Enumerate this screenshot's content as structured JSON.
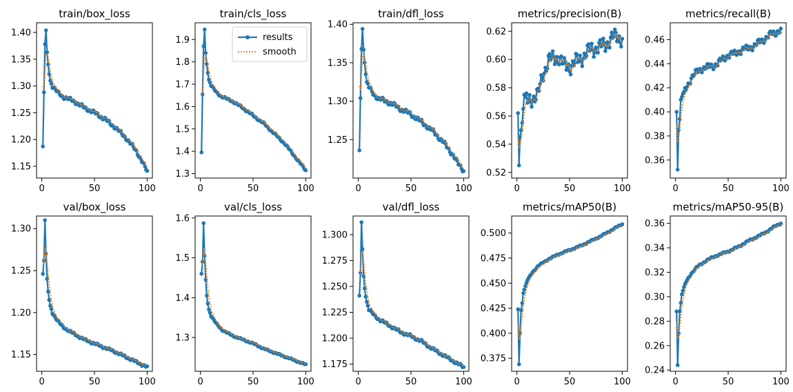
{
  "figure": {
    "columns": 5,
    "rows": 2
  },
  "colors": {
    "results": "#1f77b4",
    "smooth": "#ff7f0e",
    "axes": "#000000",
    "background": "#ffffff"
  },
  "legend": {
    "entries": [
      "results",
      "smooth"
    ],
    "location": "upper-right",
    "panel": 1
  },
  "chart_data": [
    {
      "type": "line",
      "title": "train/box_loss",
      "xlim": [
        -5,
        105
      ],
      "ylim": [
        1.128,
        1.418
      ],
      "xticks": [
        0,
        50,
        100
      ],
      "yticks": [
        1.15,
        1.2,
        1.25,
        1.3,
        1.35,
        1.4
      ],
      "ytick_labels": [
        "1.15",
        "1.20",
        "1.25",
        "1.30",
        "1.35",
        "1.40"
      ],
      "kp": [
        [
          1,
          1.187
        ],
        [
          2,
          1.288
        ],
        [
          3,
          1.378
        ],
        [
          4,
          1.404
        ],
        [
          5,
          1.363
        ],
        [
          6,
          1.34
        ],
        [
          7,
          1.322
        ],
        [
          8,
          1.31
        ],
        [
          10,
          1.3
        ],
        [
          15,
          1.288
        ],
        [
          20,
          1.28
        ],
        [
          30,
          1.272
        ],
        [
          40,
          1.26
        ],
        [
          50,
          1.25
        ],
        [
          60,
          1.238
        ],
        [
          70,
          1.222
        ],
        [
          80,
          1.203
        ],
        [
          90,
          1.178
        ],
        [
          95,
          1.16
        ],
        [
          100,
          1.14
        ]
      ],
      "smooth_start": 1.3,
      "noise": 0.003
    },
    {
      "type": "line",
      "title": "train/cls_loss",
      "xlim": [
        -5,
        105
      ],
      "ylim": [
        1.28,
        1.975
      ],
      "xticks": [
        0,
        50,
        100
      ],
      "yticks": [
        1.3,
        1.4,
        1.5,
        1.6,
        1.7,
        1.8,
        1.9
      ],
      "ytick_labels": [
        "1.3",
        "1.4",
        "1.5",
        "1.6",
        "1.7",
        "1.8",
        "1.9"
      ],
      "kp": [
        [
          1,
          1.395
        ],
        [
          2,
          1.655
        ],
        [
          3,
          1.87
        ],
        [
          4,
          1.945
        ],
        [
          5,
          1.84
        ],
        [
          6,
          1.79
        ],
        [
          7,
          1.75
        ],
        [
          8,
          1.72
        ],
        [
          10,
          1.695
        ],
        [
          15,
          1.665
        ],
        [
          20,
          1.645
        ],
        [
          30,
          1.625
        ],
        [
          40,
          1.595
        ],
        [
          50,
          1.56
        ],
        [
          60,
          1.525
        ],
        [
          70,
          1.48
        ],
        [
          80,
          1.435
        ],
        [
          90,
          1.375
        ],
        [
          95,
          1.345
        ],
        [
          100,
          1.315
        ]
      ],
      "smooth_start": 1.66,
      "noise": 0.004
    },
    {
      "type": "line",
      "title": "train/dfl_loss",
      "xlim": [
        -5,
        105
      ],
      "ylim": [
        1.2,
        1.402
      ],
      "xticks": [
        0,
        50,
        100
      ],
      "yticks": [
        1.25,
        1.3,
        1.35,
        1.4
      ],
      "ytick_labels": [
        "1.25",
        "1.30",
        "1.35",
        "1.40"
      ],
      "kp": [
        [
          1,
          1.236
        ],
        [
          2,
          1.304
        ],
        [
          3,
          1.368
        ],
        [
          4,
          1.394
        ],
        [
          5,
          1.367
        ],
        [
          6,
          1.35
        ],
        [
          7,
          1.335
        ],
        [
          8,
          1.325
        ],
        [
          10,
          1.318
        ],
        [
          15,
          1.308
        ],
        [
          20,
          1.303
        ],
        [
          30,
          1.298
        ],
        [
          40,
          1.29
        ],
        [
          50,
          1.283
        ],
        [
          60,
          1.273
        ],
        [
          70,
          1.262
        ],
        [
          80,
          1.248
        ],
        [
          90,
          1.23
        ],
        [
          95,
          1.218
        ],
        [
          100,
          1.21
        ]
      ],
      "smooth_start": 1.32,
      "noise": 0.0025
    },
    {
      "type": "line",
      "title": "metrics/precision(B)",
      "xlim": [
        -5,
        105
      ],
      "ylim": [
        0.516,
        0.626
      ],
      "xticks": [
        0,
        50,
        100
      ],
      "yticks": [
        0.52,
        0.54,
        0.56,
        0.58,
        0.6,
        0.62
      ],
      "ytick_labels": [
        "0.52",
        "0.54",
        "0.56",
        "0.58",
        "0.60",
        "0.62"
      ],
      "kp": [
        [
          1,
          0.562
        ],
        [
          2,
          0.525
        ],
        [
          3,
          0.545
        ],
        [
          5,
          0.555
        ],
        [
          7,
          0.575
        ],
        [
          10,
          0.57
        ],
        [
          15,
          0.573
        ],
        [
          20,
          0.575
        ],
        [
          25,
          0.59
        ],
        [
          30,
          0.6
        ],
        [
          35,
          0.6
        ],
        [
          40,
          0.602
        ],
        [
          45,
          0.595
        ],
        [
          50,
          0.595
        ],
        [
          55,
          0.598
        ],
        [
          60,
          0.6
        ],
        [
          65,
          0.604
        ],
        [
          70,
          0.607
        ],
        [
          75,
          0.608
        ],
        [
          80,
          0.609
        ],
        [
          85,
          0.611
        ],
        [
          90,
          0.615
        ],
        [
          95,
          0.616
        ],
        [
          100,
          0.615
        ]
      ],
      "smooth_start": 0.545,
      "noise": 0.005
    },
    {
      "type": "line",
      "title": "metrics/recall(B)",
      "xlim": [
        -5,
        105
      ],
      "ylim": [
        0.345,
        0.474
      ],
      "xticks": [
        0,
        50,
        100
      ],
      "yticks": [
        0.36,
        0.38,
        0.4,
        0.42,
        0.44,
        0.46
      ],
      "ytick_labels": [
        "0.36",
        "0.38",
        "0.40",
        "0.42",
        "0.44",
        "0.46"
      ],
      "kp": [
        [
          1,
          0.4
        ],
        [
          2,
          0.352
        ],
        [
          3,
          0.385
        ],
        [
          4,
          0.394
        ],
        [
          5,
          0.41
        ],
        [
          7,
          0.415
        ],
        [
          10,
          0.42
        ],
        [
          15,
          0.428
        ],
        [
          20,
          0.433
        ],
        [
          25,
          0.436
        ],
        [
          30,
          0.437
        ],
        [
          35,
          0.438
        ],
        [
          40,
          0.44
        ],
        [
          45,
          0.444
        ],
        [
          50,
          0.447
        ],
        [
          55,
          0.448
        ],
        [
          60,
          0.45
        ],
        [
          65,
          0.452
        ],
        [
          70,
          0.453
        ],
        [
          75,
          0.455
        ],
        [
          80,
          0.458
        ],
        [
          85,
          0.461
        ],
        [
          90,
          0.464
        ],
        [
          95,
          0.466
        ],
        [
          100,
          0.468
        ]
      ],
      "smooth_start": 0.39,
      "noise": 0.0025
    },
    {
      "type": "line",
      "title": "val/box_loss",
      "xlim": [
        -5,
        105
      ],
      "ylim": [
        1.13,
        1.315
      ],
      "xticks": [
        0,
        50,
        100
      ],
      "yticks": [
        1.15,
        1.2,
        1.25,
        1.3
      ],
      "ytick_labels": [
        "1.15",
        "1.20",
        "1.25",
        "1.30"
      ],
      "kp": [
        [
          1,
          1.246
        ],
        [
          2,
          1.262
        ],
        [
          3,
          1.31
        ],
        [
          4,
          1.27
        ],
        [
          5,
          1.24
        ],
        [
          6,
          1.225
        ],
        [
          7,
          1.215
        ],
        [
          8,
          1.208
        ],
        [
          10,
          1.2
        ],
        [
          15,
          1.19
        ],
        [
          20,
          1.183
        ],
        [
          30,
          1.175
        ],
        [
          40,
          1.168
        ],
        [
          50,
          1.163
        ],
        [
          60,
          1.158
        ],
        [
          70,
          1.153
        ],
        [
          80,
          1.147
        ],
        [
          90,
          1.141
        ],
        [
          95,
          1.138
        ],
        [
          100,
          1.135
        ]
      ],
      "smooth_start": 1.255,
      "noise": 0.0012
    },
    {
      "type": "line",
      "title": "val/cls_loss",
      "xlim": [
        -5,
        105
      ],
      "ylim": [
        1.215,
        1.605
      ],
      "xticks": [
        0,
        50,
        100
      ],
      "yticks": [
        1.3,
        1.4,
        1.5,
        1.6
      ],
      "ytick_labels": [
        "1.3",
        "1.4",
        "1.5",
        "1.6"
      ],
      "kp": [
        [
          1,
          1.46
        ],
        [
          2,
          1.49
        ],
        [
          3,
          1.587
        ],
        [
          4,
          1.505
        ],
        [
          5,
          1.445
        ],
        [
          6,
          1.405
        ],
        [
          7,
          1.385
        ],
        [
          8,
          1.37
        ],
        [
          10,
          1.355
        ],
        [
          15,
          1.335
        ],
        [
          20,
          1.32
        ],
        [
          30,
          1.305
        ],
        [
          40,
          1.295
        ],
        [
          50,
          1.285
        ],
        [
          60,
          1.272
        ],
        [
          70,
          1.262
        ],
        [
          80,
          1.252
        ],
        [
          90,
          1.242
        ],
        [
          95,
          1.237
        ],
        [
          100,
          1.232
        ]
      ],
      "smooth_start": 1.48,
      "noise": 0.0015
    },
    {
      "type": "line",
      "title": "val/dfl_loss",
      "xlim": [
        -5,
        105
      ],
      "ylim": [
        1.168,
        1.318
      ],
      "xticks": [
        0,
        50,
        100
      ],
      "yticks": [
        1.175,
        1.2,
        1.225,
        1.25,
        1.275,
        1.3
      ],
      "ytick_labels": [
        "1.175",
        "1.200",
        "1.225",
        "1.250",
        "1.275",
        "1.300"
      ],
      "kp": [
        [
          1,
          1.241
        ],
        [
          2,
          1.263
        ],
        [
          3,
          1.312
        ],
        [
          4,
          1.286
        ],
        [
          5,
          1.26
        ],
        [
          6,
          1.248
        ],
        [
          7,
          1.24
        ],
        [
          8,
          1.235
        ],
        [
          10,
          1.228
        ],
        [
          15,
          1.222
        ],
        [
          20,
          1.218
        ],
        [
          30,
          1.212
        ],
        [
          40,
          1.206
        ],
        [
          50,
          1.202
        ],
        [
          60,
          1.197
        ],
        [
          70,
          1.19
        ],
        [
          80,
          1.184
        ],
        [
          90,
          1.178
        ],
        [
          95,
          1.175
        ],
        [
          100,
          1.172
        ]
      ],
      "smooth_start": 1.262,
      "noise": 0.0012
    },
    {
      "type": "line",
      "title": "metrics/mAP50(B)",
      "xlim": [
        -5,
        105
      ],
      "ylim": [
        0.362,
        0.517
      ],
      "xticks": [
        0,
        50,
        100
      ],
      "yticks": [
        0.375,
        0.4,
        0.425,
        0.45,
        0.475,
        0.5
      ],
      "ytick_labels": [
        "0.375",
        "0.400",
        "0.425",
        "0.450",
        "0.475",
        "0.500"
      ],
      "kp": [
        [
          1,
          0.424
        ],
        [
          2,
          0.369
        ],
        [
          3,
          0.4
        ],
        [
          4,
          0.423
        ],
        [
          5,
          0.43
        ],
        [
          6,
          0.44
        ],
        [
          8,
          0.447
        ],
        [
          10,
          0.453
        ],
        [
          15,
          0.461
        ],
        [
          20,
          0.467
        ],
        [
          30,
          0.474
        ],
        [
          40,
          0.479
        ],
        [
          50,
          0.483
        ],
        [
          60,
          0.487
        ],
        [
          70,
          0.492
        ],
        [
          80,
          0.497
        ],
        [
          90,
          0.503
        ],
        [
          95,
          0.506
        ],
        [
          100,
          0.509
        ]
      ],
      "smooth_start": 0.41,
      "noise": 0.0006
    },
    {
      "type": "line",
      "title": "metrics/mAP50-95(B)",
      "xlim": [
        -5,
        105
      ],
      "ylim": [
        0.239,
        0.366
      ],
      "xticks": [
        0,
        50,
        100
      ],
      "yticks": [
        0.24,
        0.26,
        0.28,
        0.3,
        0.32,
        0.34,
        0.36
      ],
      "ytick_labels": [
        "0.24",
        "0.26",
        "0.28",
        "0.30",
        "0.32",
        "0.34",
        "0.36"
      ],
      "kp": [
        [
          1,
          0.288
        ],
        [
          2,
          0.244
        ],
        [
          3,
          0.27
        ],
        [
          4,
          0.288
        ],
        [
          5,
          0.295
        ],
        [
          6,
          0.302
        ],
        [
          8,
          0.308
        ],
        [
          10,
          0.312
        ],
        [
          15,
          0.319
        ],
        [
          20,
          0.324
        ],
        [
          30,
          0.33
        ],
        [
          40,
          0.334
        ],
        [
          50,
          0.337
        ],
        [
          60,
          0.341
        ],
        [
          70,
          0.346
        ],
        [
          80,
          0.35
        ],
        [
          90,
          0.355
        ],
        [
          95,
          0.358
        ],
        [
          100,
          0.36
        ]
      ],
      "smooth_start": 0.279,
      "noise": 0.0006
    }
  ]
}
